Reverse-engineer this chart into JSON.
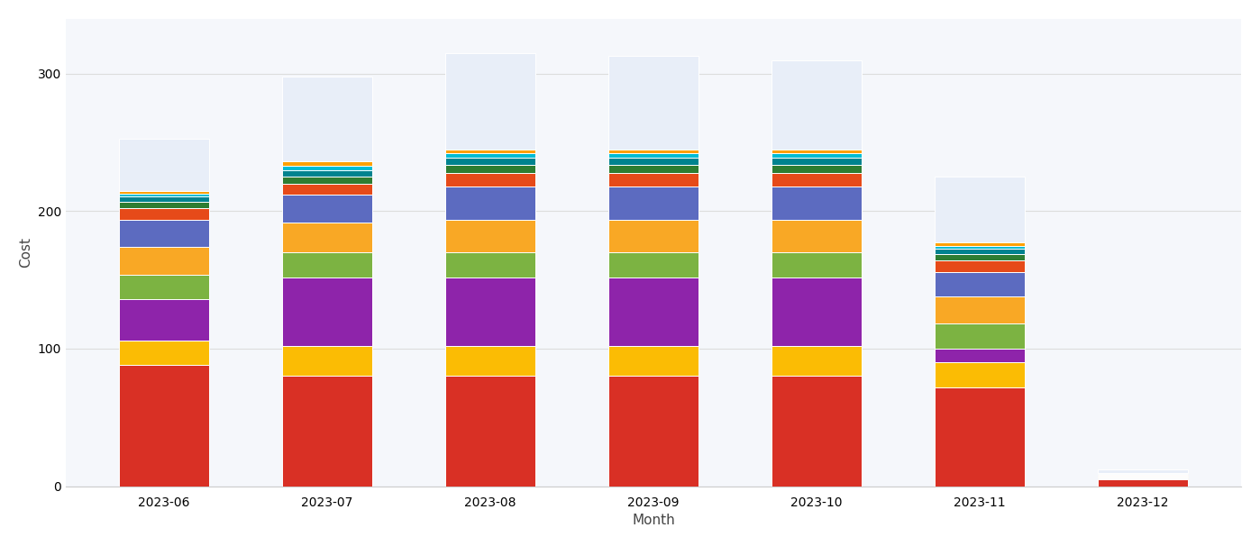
{
  "months": [
    "2023-06",
    "2023-07",
    "2023-08",
    "2023-09",
    "2023-10",
    "2023-11",
    "2023-12"
  ],
  "ylabel": "Cost",
  "xlabel": "Month",
  "ylim": [
    0,
    340
  ],
  "yticks": [
    0,
    100,
    200,
    300
  ],
  "background_color": "#ffffff",
  "chart_bg": "#f5f7fb",
  "bar_width": 0.55,
  "segments": [
    {
      "color": "#d93025",
      "values": [
        88,
        80,
        80,
        80,
        80,
        72,
        5
      ]
    },
    {
      "color": "#fbbc04",
      "values": [
        18,
        22,
        22,
        22,
        22,
        18,
        0.8
      ]
    },
    {
      "color": "#8e24aa",
      "values": [
        30,
        50,
        50,
        50,
        50,
        10,
        0.5
      ]
    },
    {
      "color": "#7cb342",
      "values": [
        18,
        18,
        18,
        18,
        18,
        18,
        0.5
      ]
    },
    {
      "color": "#f9a825",
      "values": [
        20,
        22,
        24,
        24,
        24,
        20,
        0.8
      ]
    },
    {
      "color": "#5c6bc0",
      "values": [
        20,
        20,
        24,
        24,
        24,
        18,
        0.8
      ]
    },
    {
      "color": "#e64a19",
      "values": [
        8,
        8,
        10,
        10,
        10,
        8,
        0.3
      ]
    },
    {
      "color": "#2e7d32",
      "values": [
        5,
        5,
        6,
        6,
        6,
        5,
        0.2
      ]
    },
    {
      "color": "#00838f",
      "values": [
        4,
        5,
        5,
        5,
        5,
        4,
        0.2
      ]
    },
    {
      "color": "#00bcd4",
      "values": [
        2,
        3,
        3,
        3,
        3,
        2,
        0.1
      ]
    },
    {
      "color": "#ffa000",
      "values": [
        2,
        3,
        3,
        3,
        3,
        2,
        0.1
      ]
    },
    {
      "color": "#e8eef8",
      "values": [
        38,
        62,
        70,
        68,
        65,
        48,
        3
      ]
    }
  ]
}
